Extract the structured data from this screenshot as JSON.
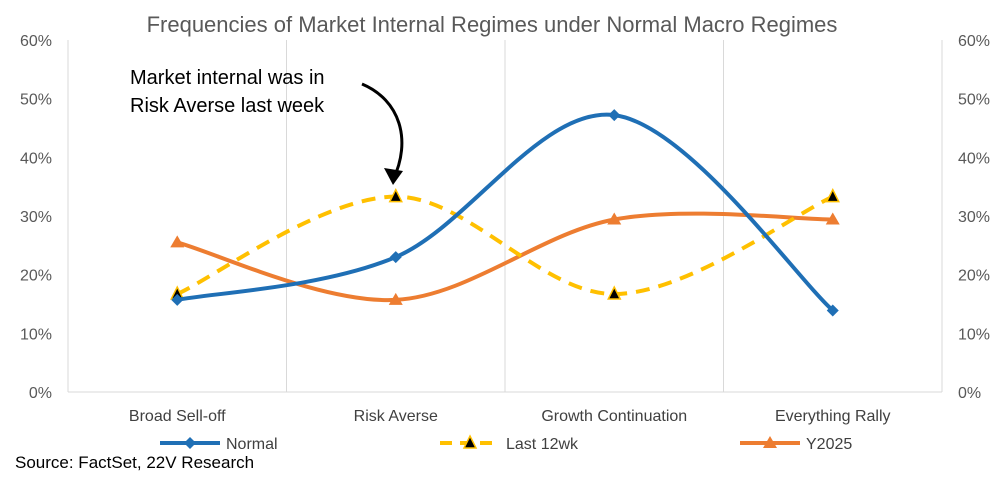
{
  "chart_data": {
    "type": "line",
    "title": "Frequencies of Market Internal Regimes under Normal Macro Regimes",
    "categories": [
      "Broad Sell-off",
      "Risk Averse",
      "Growth Continuation",
      "Everything Rally"
    ],
    "ylim": [
      0,
      60
    ],
    "yticks": [
      "0%",
      "10%",
      "20%",
      "30%",
      "40%",
      "50%",
      "60%"
    ],
    "y_axis_both_sides": true,
    "grid": "vertical category separators",
    "legend_position": "bottom",
    "series": [
      {
        "name": "Normal",
        "values": [
          15.7,
          23.0,
          47.2,
          13.9
        ],
        "color": "#1f6fb5",
        "marker": "diamond",
        "style": "solid"
      },
      {
        "name": "Last 12wk",
        "values": [
          16.7,
          33.3,
          16.7,
          33.3
        ],
        "color": "#ffc000",
        "marker": "triangle-black",
        "style": "dashed"
      },
      {
        "name": "Y2025",
        "values": [
          25.5,
          15.7,
          29.4,
          29.4
        ],
        "color": "#ed7d31",
        "marker": "triangle",
        "style": "solid"
      }
    ],
    "annotation": {
      "lines": [
        "Market internal was in",
        "Risk Averse last week"
      ]
    }
  },
  "source": "Source: FactSet, 22V Research"
}
